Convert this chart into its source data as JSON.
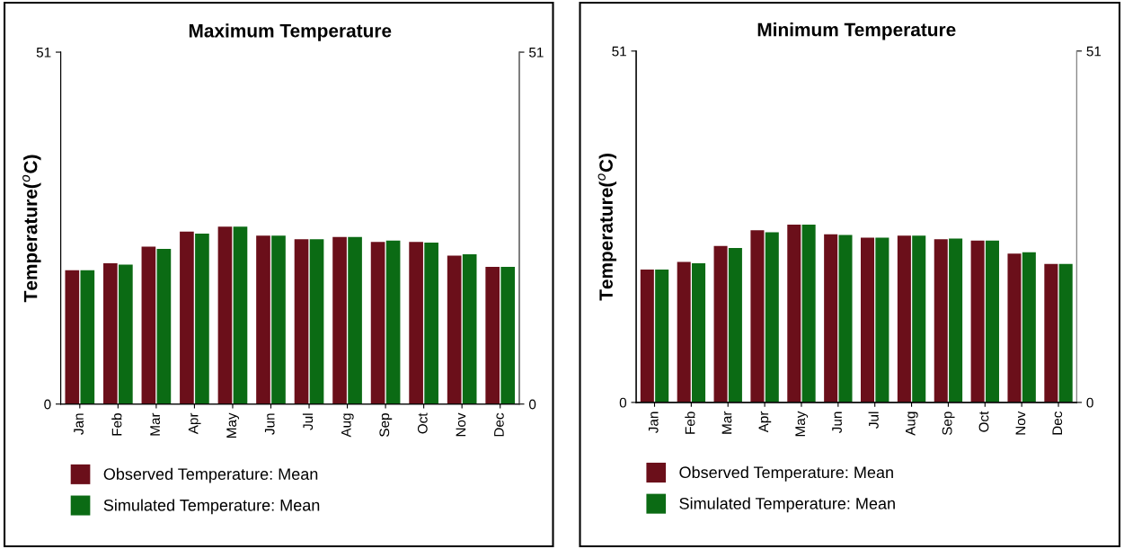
{
  "chart_data": [
    {
      "type": "bar",
      "title": "Maximum Temperature",
      "ylabel": "Temperature($^{o}$C)",
      "categories": [
        "Jan",
        "Feb",
        "Mar",
        "Apr",
        "May",
        "Jun",
        "Jul",
        "Aug",
        "Sep",
        "Oct",
        "Nov",
        "Dec"
      ],
      "series": [
        {
          "name": "Observed Temperature: Mean",
          "color": "#6b0f1a",
          "values": [
            19.4,
            20.4,
            22.8,
            25.0,
            25.7,
            24.4,
            23.9,
            24.2,
            23.5,
            23.5,
            21.5,
            19.9
          ]
        },
        {
          "name": "Simulated Temperature: Mean",
          "color": "#0b6b14",
          "values": [
            19.4,
            20.2,
            22.5,
            24.7,
            25.7,
            24.4,
            23.9,
            24.2,
            23.7,
            23.4,
            21.7,
            19.9
          ]
        }
      ],
      "ylim": [
        0,
        51
      ],
      "yticks": [
        0,
        51
      ],
      "y2lim": [
        0,
        51
      ],
      "y2ticks": [
        0,
        51
      ],
      "grid": false,
      "legend": "bottom"
    },
    {
      "type": "bar",
      "title": "Minimum Temperature",
      "ylabel": "Temperature($^{o}$C)",
      "categories": [
        "Jan",
        "Feb",
        "Mar",
        "Apr",
        "May",
        "Jun",
        "Jul",
        "Aug",
        "Sep",
        "Oct",
        "Nov",
        "Dec"
      ],
      "series": [
        {
          "name": "Observed Temperature: Mean",
          "color": "#6b0f1a",
          "values": [
            19.3,
            20.4,
            22.7,
            25.0,
            25.8,
            24.4,
            23.9,
            24.2,
            23.7,
            23.5,
            21.6,
            20.1
          ]
        },
        {
          "name": "Simulated Temperature: Mean",
          "color": "#0b6b14",
          "values": [
            19.3,
            20.2,
            22.4,
            24.7,
            25.8,
            24.3,
            23.9,
            24.2,
            23.8,
            23.5,
            21.8,
            20.1
          ]
        }
      ],
      "ylim": [
        0,
        51
      ],
      "yticks": [
        0,
        51
      ],
      "y2lim": [
        0,
        51
      ],
      "y2ticks": [
        0,
        51
      ],
      "grid": false,
      "legend": "bottom"
    }
  ]
}
